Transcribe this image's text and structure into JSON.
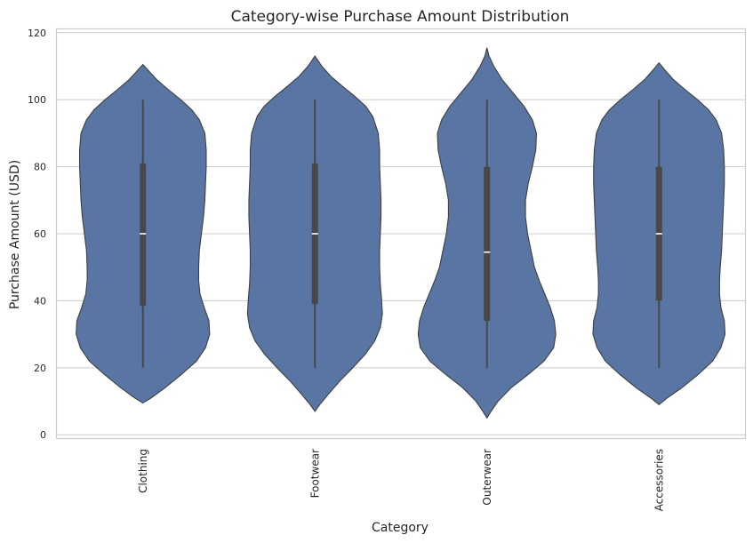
{
  "chart_data": {
    "type": "violin",
    "title": "Category-wise Purchase Amount Distribution",
    "xlabel": "Category",
    "ylabel": "Purchase Amount (USD)",
    "ylim": [
      -1,
      121
    ],
    "yticks": [
      0,
      20,
      40,
      60,
      80,
      100,
      120
    ],
    "ytick_labels": [
      "0",
      "20",
      "40",
      "60",
      "80",
      "100",
      "120"
    ],
    "grid": "horizontal",
    "colors": {
      "violin_fill": "#5875a4",
      "violin_edge": "#3f3f3f",
      "box": "#484848",
      "median": "#ffffff"
    },
    "categories": [
      "Clothing",
      "Footwear",
      "Outerwear",
      "Accessories"
    ],
    "violins": [
      {
        "category": "Clothing",
        "min": 20,
        "q1": 38.5,
        "median": 60,
        "q3": 81,
        "max": 100,
        "kde_ymin": 9.5,
        "kde_ymax": 110.5,
        "profile": [
          [
            9.5,
            0.0
          ],
          [
            11,
            0.12
          ],
          [
            14,
            0.32
          ],
          [
            18,
            0.56
          ],
          [
            22,
            0.78
          ],
          [
            26,
            0.91
          ],
          [
            30,
            0.97
          ],
          [
            34,
            0.96
          ],
          [
            38,
            0.89
          ],
          [
            42,
            0.83
          ],
          [
            46,
            0.81
          ],
          [
            50,
            0.81
          ],
          [
            55,
            0.82
          ],
          [
            60,
            0.85
          ],
          [
            65,
            0.88
          ],
          [
            70,
            0.9
          ],
          [
            75,
            0.91
          ],
          [
            80,
            0.92
          ],
          [
            85,
            0.92
          ],
          [
            90,
            0.9
          ],
          [
            94,
            0.82
          ],
          [
            97,
            0.71
          ],
          [
            100,
            0.55
          ],
          [
            103,
            0.37
          ],
          [
            106,
            0.2
          ],
          [
            108,
            0.11
          ],
          [
            110.5,
            0.0
          ]
        ]
      },
      {
        "category": "Footwear",
        "min": 20,
        "q1": 39,
        "median": 60,
        "q3": 81,
        "max": 100,
        "kde_ymin": 7,
        "kde_ymax": 113,
        "profile": [
          [
            7,
            0.0
          ],
          [
            9,
            0.07
          ],
          [
            12,
            0.19
          ],
          [
            16,
            0.36
          ],
          [
            20,
            0.55
          ],
          [
            24,
            0.73
          ],
          [
            28,
            0.87
          ],
          [
            32,
            0.95
          ],
          [
            36,
            0.98
          ],
          [
            40,
            0.97
          ],
          [
            45,
            0.95
          ],
          [
            50,
            0.94
          ],
          [
            55,
            0.94
          ],
          [
            60,
            0.95
          ],
          [
            65,
            0.96
          ],
          [
            70,
            0.96
          ],
          [
            75,
            0.95
          ],
          [
            80,
            0.94
          ],
          [
            85,
            0.94
          ],
          [
            90,
            0.92
          ],
          [
            95,
            0.84
          ],
          [
            98,
            0.74
          ],
          [
            101,
            0.58
          ],
          [
            104,
            0.4
          ],
          [
            107,
            0.23
          ],
          [
            110,
            0.1
          ],
          [
            113,
            0.0
          ]
        ]
      },
      {
        "category": "Outerwear",
        "min": 20,
        "q1": 34,
        "median": 54.5,
        "q3": 80,
        "max": 100,
        "kde_ymin": 5,
        "kde_ymax": 115.5,
        "profile": [
          [
            5,
            0.0
          ],
          [
            7,
            0.06
          ],
          [
            10,
            0.16
          ],
          [
            14,
            0.35
          ],
          [
            18,
            0.6
          ],
          [
            22,
            0.83
          ],
          [
            26,
            0.97
          ],
          [
            30,
            1.0
          ],
          [
            34,
            0.98
          ],
          [
            38,
            0.92
          ],
          [
            42,
            0.84
          ],
          [
            46,
            0.76
          ],
          [
            50,
            0.69
          ],
          [
            55,
            0.64
          ],
          [
            60,
            0.59
          ],
          [
            65,
            0.56
          ],
          [
            70,
            0.56
          ],
          [
            75,
            0.6
          ],
          [
            80,
            0.66
          ],
          [
            85,
            0.71
          ],
          [
            90,
            0.72
          ],
          [
            94,
            0.66
          ],
          [
            98,
            0.54
          ],
          [
            102,
            0.38
          ],
          [
            106,
            0.22
          ],
          [
            110,
            0.1
          ],
          [
            113,
            0.03
          ],
          [
            115.5,
            0.0
          ]
        ]
      },
      {
        "category": "Accessories",
        "min": 20,
        "q1": 40,
        "median": 60,
        "q3": 80,
        "max": 100,
        "kde_ymin": 9,
        "kde_ymax": 111,
        "profile": [
          [
            9,
            0.0
          ],
          [
            11,
            0.12
          ],
          [
            14,
            0.33
          ],
          [
            18,
            0.57
          ],
          [
            22,
            0.78
          ],
          [
            26,
            0.9
          ],
          [
            30,
            0.96
          ],
          [
            34,
            0.95
          ],
          [
            38,
            0.9
          ],
          [
            42,
            0.88
          ],
          [
            46,
            0.88
          ],
          [
            50,
            0.89
          ],
          [
            55,
            0.91
          ],
          [
            60,
            0.92
          ],
          [
            65,
            0.93
          ],
          [
            70,
            0.94
          ],
          [
            75,
            0.95
          ],
          [
            80,
            0.95
          ],
          [
            85,
            0.94
          ],
          [
            90,
            0.91
          ],
          [
            94,
            0.83
          ],
          [
            97,
            0.72
          ],
          [
            100,
            0.56
          ],
          [
            103,
            0.38
          ],
          [
            106,
            0.21
          ],
          [
            109,
            0.08
          ],
          [
            111,
            0.0
          ]
        ]
      }
    ]
  }
}
